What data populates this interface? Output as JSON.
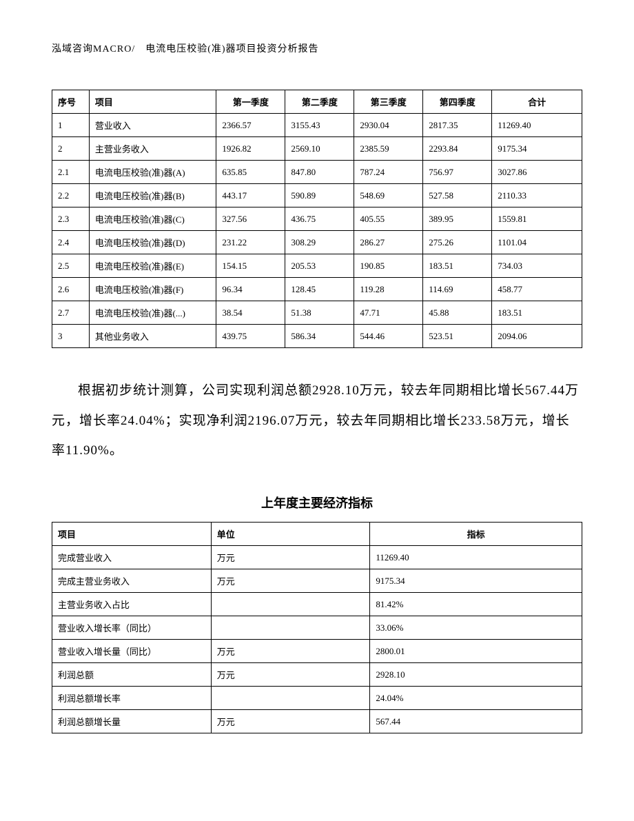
{
  "header": "泓域咨询MACRO/　电流电压校验(准)器项目投资分析报告",
  "table1": {
    "type": "table",
    "columns": [
      "序号",
      "项目",
      "第一季度",
      "第二季度",
      "第三季度",
      "第四季度",
      "合计"
    ],
    "column_alignment": [
      "left",
      "left",
      "left",
      "left",
      "left",
      "left",
      "left"
    ],
    "header_alignment": [
      "left",
      "left",
      "center",
      "center",
      "center",
      "center",
      "center"
    ],
    "border_color": "#000000",
    "font_size": 13,
    "rows": [
      [
        "1",
        "营业收入",
        "2366.57",
        "3155.43",
        "2930.04",
        "2817.35",
        "11269.40"
      ],
      [
        "2",
        "主营业务收入",
        "1926.82",
        "2569.10",
        "2385.59",
        "2293.84",
        "9175.34"
      ],
      [
        "2.1",
        "电流电压校验(准)器(A)",
        "635.85",
        "847.80",
        "787.24",
        "756.97",
        "3027.86"
      ],
      [
        "2.2",
        "电流电压校验(准)器(B)",
        "443.17",
        "590.89",
        "548.69",
        "527.58",
        "2110.33"
      ],
      [
        "2.3",
        "电流电压校验(准)器(C)",
        "327.56",
        "436.75",
        "405.55",
        "389.95",
        "1559.81"
      ],
      [
        "2.4",
        "电流电压校验(准)器(D)",
        "231.22",
        "308.29",
        "286.27",
        "275.26",
        "1101.04"
      ],
      [
        "2.5",
        "电流电压校验(准)器(E)",
        "154.15",
        "205.53",
        "190.85",
        "183.51",
        "734.03"
      ],
      [
        "2.6",
        "电流电压校验(准)器(F)",
        "96.34",
        "128.45",
        "119.28",
        "114.69",
        "458.77"
      ],
      [
        "2.7",
        "电流电压校验(准)器(...)",
        "38.54",
        "51.38",
        "47.71",
        "45.88",
        "183.51"
      ],
      [
        "3",
        "其他业务收入",
        "439.75",
        "586.34",
        "544.46",
        "523.51",
        "2094.06"
      ]
    ]
  },
  "paragraph": "根据初步统计测算，公司实现利润总额2928.10万元，较去年同期相比增长567.44万元，增长率24.04%；实现净利润2196.07万元，较去年同期相比增长233.58万元，增长率11.90%。",
  "subtitle": "上年度主要经济指标",
  "table2": {
    "type": "table",
    "columns": [
      "项目",
      "单位",
      "指标"
    ],
    "column_alignment": [
      "left",
      "left",
      "left"
    ],
    "header_alignment": [
      "left",
      "left",
      "center"
    ],
    "border_color": "#000000",
    "font_size": 13,
    "rows": [
      [
        "完成营业收入",
        "万元",
        "11269.40"
      ],
      [
        "完成主营业务收入",
        "万元",
        "9175.34"
      ],
      [
        "主营业务收入占比",
        "",
        "81.42%"
      ],
      [
        "营业收入增长率（同比）",
        "",
        "33.06%"
      ],
      [
        "营业收入增长量（同比）",
        "万元",
        "2800.01"
      ],
      [
        "利润总额",
        "万元",
        "2928.10"
      ],
      [
        "利润总额增长率",
        "",
        "24.04%"
      ],
      [
        "利润总额增长量",
        "万元",
        "567.44"
      ]
    ]
  },
  "colors": {
    "background": "#ffffff",
    "text": "#000000",
    "border": "#000000"
  },
  "typography": {
    "font_family": "SimSun",
    "header_fontsize": 14,
    "paragraph_fontsize": 19,
    "subtitle_fontsize": 18,
    "table_fontsize": 13
  }
}
